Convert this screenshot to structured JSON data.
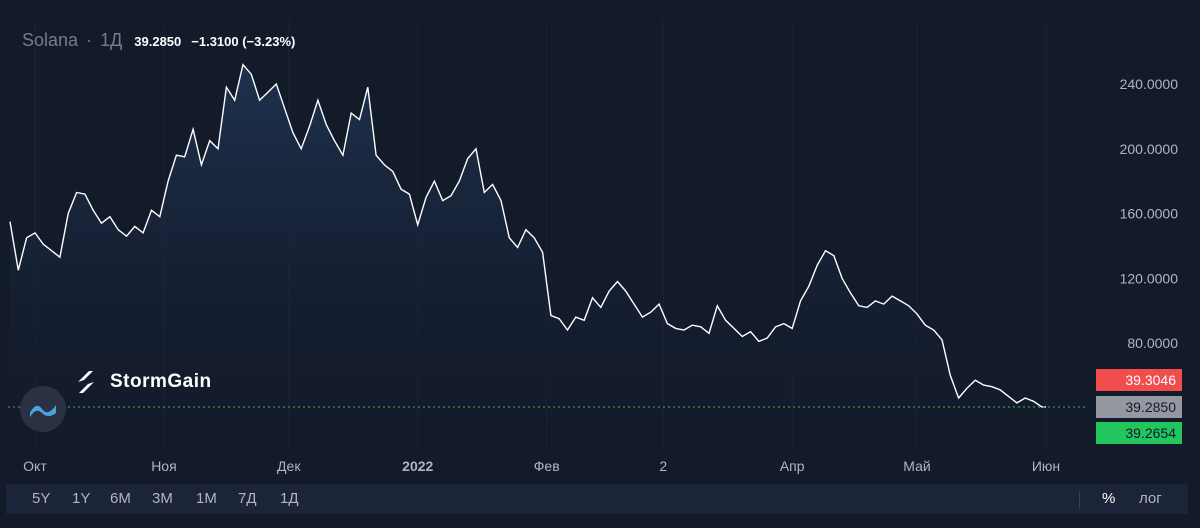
{
  "header": {
    "symbol": "Solana",
    "interval": "1Д",
    "last_value": "39.2850",
    "change": "−1.3100 (−3.23%)"
  },
  "branding": {
    "logo_text": "StormGain"
  },
  "price_tags": {
    "upper": {
      "label": "39.3046",
      "color": "#f24d4d"
    },
    "current": {
      "label": "39.2850",
      "color": "#9598a1"
    },
    "lower": {
      "label": "39.2654",
      "color": "#22c55e"
    }
  },
  "toolbar": {
    "ranges": [
      "5Y",
      "1Y",
      "6M",
      "3M",
      "1M",
      "7Д",
      "1Д"
    ],
    "percent": "%",
    "log": "лог"
  },
  "colors": {
    "background": "#131a2a",
    "line": "#ffffff",
    "area": "#1f3452",
    "guide": "#4caf50"
  },
  "chart_data": {
    "type": "area",
    "title": "",
    "xlabel": "",
    "ylabel": "",
    "y_ticks": [
      {
        "value": 240,
        "label": "240.0000"
      },
      {
        "value": 200,
        "label": "200.0000"
      },
      {
        "value": 160,
        "label": "160.0000"
      },
      {
        "value": 120,
        "label": "120.0000"
      },
      {
        "value": 80,
        "label": "80.0000"
      }
    ],
    "x_ticks": [
      {
        "x": "2021-10-01",
        "label": "Окт",
        "bold": false
      },
      {
        "x": "2021-11-01",
        "label": "Ноя",
        "bold": false
      },
      {
        "x": "2021-12-01",
        "label": "Дек",
        "bold": false
      },
      {
        "x": "2022-01-01",
        "label": "2022",
        "bold": true
      },
      {
        "x": "2022-02-01",
        "label": "Фев",
        "bold": false
      },
      {
        "x": "2022-03-01",
        "label": "2",
        "bold": false
      },
      {
        "x": "2022-04-01",
        "label": "Апр",
        "bold": false
      },
      {
        "x": "2022-05-01",
        "label": "Май",
        "bold": false
      },
      {
        "x": "2022-06-01",
        "label": "Июн",
        "bold": false
      }
    ],
    "ylim": [
      39.2,
      250
    ],
    "grid": true,
    "series": [
      {
        "points": [
          [
            "2021-09-25",
            155
          ],
          [
            "2021-09-27",
            125
          ],
          [
            "2021-09-29",
            145
          ],
          [
            "2021-10-01",
            148
          ],
          [
            "2021-10-03",
            141
          ],
          [
            "2021-10-05",
            137
          ],
          [
            "2021-10-07",
            133
          ],
          [
            "2021-10-09",
            160
          ],
          [
            "2021-10-11",
            173
          ],
          [
            "2021-10-13",
            172
          ],
          [
            "2021-10-15",
            162
          ],
          [
            "2021-10-17",
            154
          ],
          [
            "2021-10-19",
            158
          ],
          [
            "2021-10-21",
            150
          ],
          [
            "2021-10-23",
            146
          ],
          [
            "2021-10-25",
            152
          ],
          [
            "2021-10-27",
            148
          ],
          [
            "2021-10-29",
            162
          ],
          [
            "2021-10-31",
            158
          ],
          [
            "2021-11-02",
            180
          ],
          [
            "2021-11-04",
            196
          ],
          [
            "2021-11-06",
            195
          ],
          [
            "2021-11-08",
            212
          ],
          [
            "2021-11-10",
            190
          ],
          [
            "2021-11-12",
            205
          ],
          [
            "2021-11-14",
            200
          ],
          [
            "2021-11-16",
            238
          ],
          [
            "2021-11-18",
            230
          ],
          [
            "2021-11-20",
            252
          ],
          [
            "2021-11-22",
            246
          ],
          [
            "2021-11-24",
            230
          ],
          [
            "2021-11-26",
            235
          ],
          [
            "2021-11-28",
            240
          ],
          [
            "2021-11-30",
            225
          ],
          [
            "2021-12-02",
            210
          ],
          [
            "2021-12-04",
            200
          ],
          [
            "2021-12-06",
            214
          ],
          [
            "2021-12-08",
            230
          ],
          [
            "2021-12-10",
            215
          ],
          [
            "2021-12-12",
            205
          ],
          [
            "2021-12-14",
            196
          ],
          [
            "2021-12-16",
            222
          ],
          [
            "2021-12-18",
            218
          ],
          [
            "2021-12-20",
            238
          ],
          [
            "2021-12-22",
            196
          ],
          [
            "2021-12-24",
            190
          ],
          [
            "2021-12-26",
            186
          ],
          [
            "2021-12-28",
            175
          ],
          [
            "2021-12-30",
            172
          ],
          [
            "2022-01-01",
            153
          ],
          [
            "2022-01-03",
            170
          ],
          [
            "2022-01-05",
            180
          ],
          [
            "2022-01-07",
            168
          ],
          [
            "2022-01-09",
            171
          ],
          [
            "2022-01-11",
            180
          ],
          [
            "2022-01-13",
            194
          ],
          [
            "2022-01-15",
            200
          ],
          [
            "2022-01-17",
            173
          ],
          [
            "2022-01-19",
            178
          ],
          [
            "2022-01-21",
            168
          ],
          [
            "2022-01-23",
            145
          ],
          [
            "2022-01-25",
            139
          ],
          [
            "2022-01-27",
            150
          ],
          [
            "2022-01-29",
            145
          ],
          [
            "2022-01-31",
            136
          ],
          [
            "2022-02-02",
            97
          ],
          [
            "2022-02-04",
            95
          ],
          [
            "2022-02-06",
            88
          ],
          [
            "2022-02-08",
            96
          ],
          [
            "2022-02-10",
            94
          ],
          [
            "2022-02-12",
            108
          ],
          [
            "2022-02-14",
            102
          ],
          [
            "2022-02-16",
            112
          ],
          [
            "2022-02-18",
            118
          ],
          [
            "2022-02-20",
            112
          ],
          [
            "2022-02-22",
            104
          ],
          [
            "2022-02-24",
            96
          ],
          [
            "2022-02-26",
            99
          ],
          [
            "2022-02-28",
            104
          ],
          [
            "2022-03-02",
            92
          ],
          [
            "2022-03-04",
            89
          ],
          [
            "2022-03-06",
            88
          ],
          [
            "2022-03-08",
            91
          ],
          [
            "2022-03-10",
            90
          ],
          [
            "2022-03-12",
            86
          ],
          [
            "2022-03-14",
            103
          ],
          [
            "2022-03-16",
            94
          ],
          [
            "2022-03-18",
            89
          ],
          [
            "2022-03-20",
            84
          ],
          [
            "2022-03-22",
            87
          ],
          [
            "2022-03-24",
            81
          ],
          [
            "2022-03-26",
            83
          ],
          [
            "2022-03-28",
            90
          ],
          [
            "2022-03-30",
            92
          ],
          [
            "2022-04-01",
            89
          ],
          [
            "2022-04-03",
            106
          ],
          [
            "2022-04-05",
            115
          ],
          [
            "2022-04-07",
            128
          ],
          [
            "2022-04-09",
            137
          ],
          [
            "2022-04-11",
            134
          ],
          [
            "2022-04-13",
            120
          ],
          [
            "2022-04-15",
            111
          ],
          [
            "2022-04-17",
            103
          ],
          [
            "2022-04-19",
            102
          ],
          [
            "2022-04-21",
            106
          ],
          [
            "2022-04-23",
            104
          ],
          [
            "2022-04-25",
            109
          ],
          [
            "2022-04-27",
            106
          ],
          [
            "2022-04-29",
            103
          ],
          [
            "2022-05-01",
            98
          ],
          [
            "2022-05-03",
            91
          ],
          [
            "2022-05-05",
            88
          ],
          [
            "2022-05-07",
            82
          ],
          [
            "2022-05-09",
            60
          ],
          [
            "2022-05-11",
            46
          ],
          [
            "2022-05-13",
            52
          ],
          [
            "2022-05-15",
            57
          ],
          [
            "2022-05-17",
            54
          ],
          [
            "2022-05-19",
            53
          ],
          [
            "2022-05-21",
            51
          ],
          [
            "2022-05-23",
            47
          ],
          [
            "2022-05-25",
            43
          ],
          [
            "2022-05-27",
            46
          ],
          [
            "2022-05-29",
            44
          ],
          [
            "2022-05-31",
            40.5
          ],
          [
            "2022-06-01",
            39.285
          ]
        ]
      }
    ]
  }
}
